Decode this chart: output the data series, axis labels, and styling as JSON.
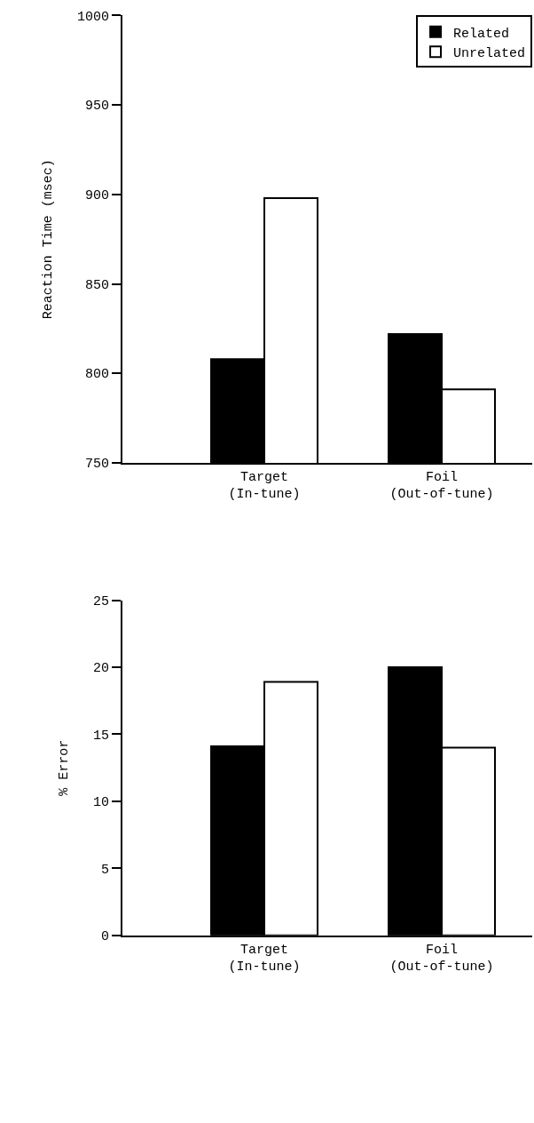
{
  "chart_data": [
    {
      "type": "bar",
      "categories": [
        "Target\n(In-tune)",
        "Foil\n(Out-of-tune)"
      ],
      "ylabel": "Reaction Time (msec)",
      "ylim": [
        750,
        1000
      ],
      "yticks": [
        750,
        800,
        850,
        900,
        950,
        1000
      ],
      "legend": "top right",
      "series": [
        {
          "name": "Related",
          "color": "#000000",
          "values": [
            808,
            822
          ]
        },
        {
          "name": "Unrelated",
          "color": "#ffffff",
          "values": [
            898,
            791
          ]
        }
      ]
    },
    {
      "type": "bar",
      "categories": [
        "Target\n(In-tune)",
        "Foil\n(Out-of-tune)"
      ],
      "ylabel": "% Error",
      "ylim": [
        0,
        25
      ],
      "yticks": [
        0,
        5,
        10,
        15,
        20,
        25
      ],
      "series": [
        {
          "color": "#000000",
          "values": [
            14.1,
            20
          ]
        },
        {
          "color": "#ffffff",
          "values": [
            18.9,
            14.0
          ]
        }
      ]
    }
  ]
}
